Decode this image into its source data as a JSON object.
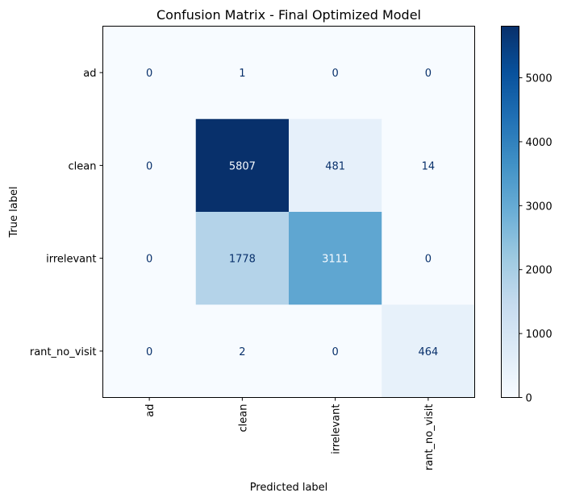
{
  "chart_data": {
    "type": "heatmap",
    "title": "Confusion Matrix - Final Optimized Model",
    "xlabel": "Predicted label",
    "ylabel": "True label",
    "x_categories": [
      "ad",
      "clean",
      "irrelevant",
      "rant_no_visit"
    ],
    "y_categories": [
      "ad",
      "clean",
      "irrelevant",
      "rant_no_visit"
    ],
    "values": [
      [
        0,
        1,
        0,
        0
      ],
      [
        0,
        5807,
        481,
        14
      ],
      [
        0,
        1778,
        3111,
        0
      ],
      [
        0,
        2,
        0,
        464
      ]
    ],
    "value_range": [
      0,
      5807
    ],
    "colormap": "Blues",
    "colorbar_ticks": [
      0,
      1000,
      2000,
      3000,
      4000,
      5000
    ],
    "colorbar_tick_labels": [
      "0",
      "1000",
      "2000",
      "3000",
      "4000",
      "5000"
    ],
    "grid": false,
    "x_tick_rotation": "vertical"
  }
}
